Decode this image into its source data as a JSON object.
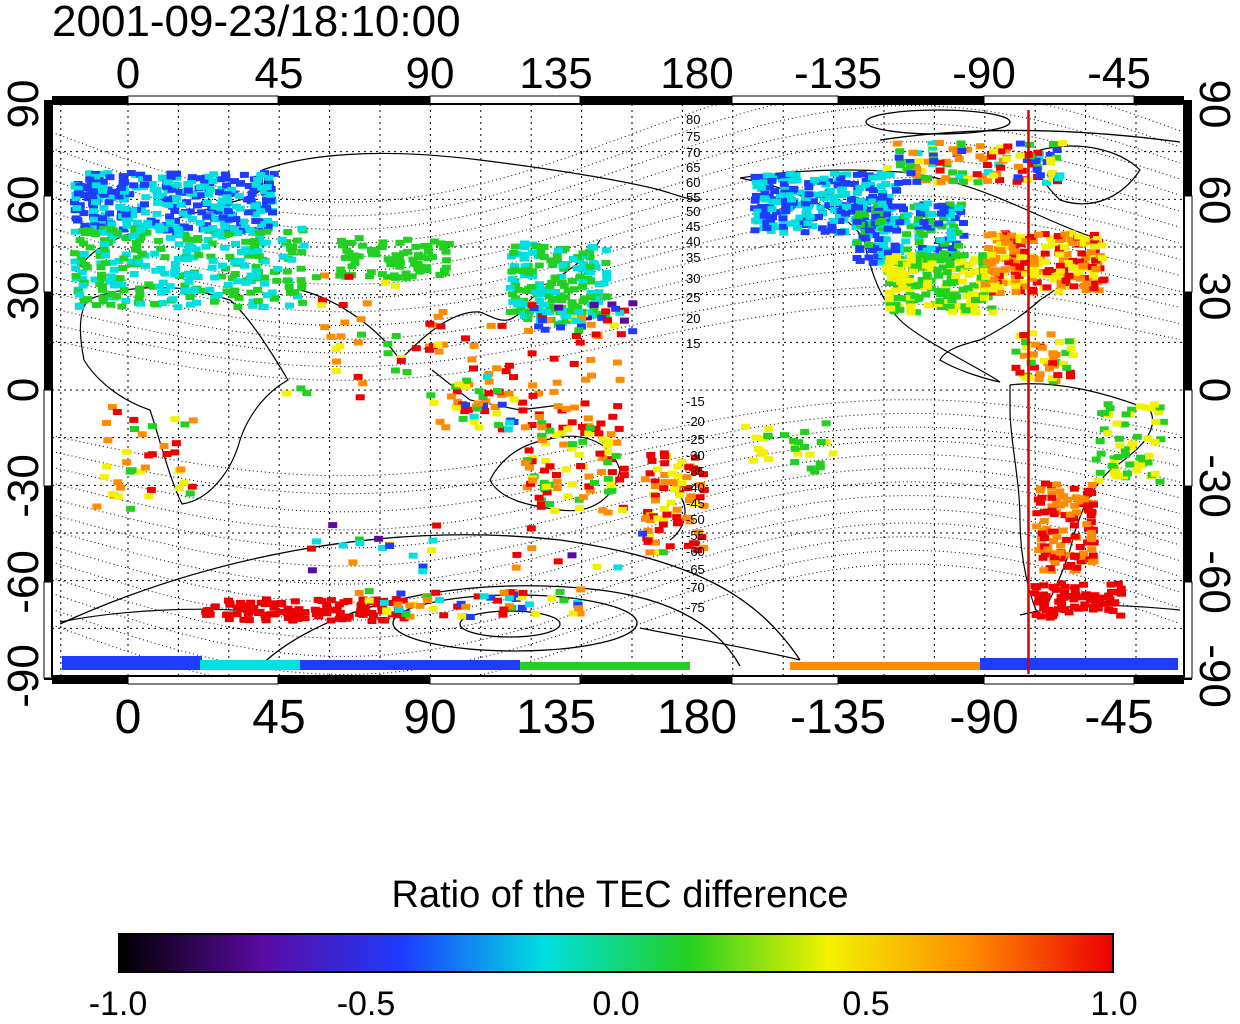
{
  "timestamp": "2001-09-23/18:10:00",
  "top_axis_labels": [
    "0",
    "45",
    "90",
    "135",
    "180",
    "-135",
    "-90",
    "-45"
  ],
  "bottom_axis_labels": [
    "0",
    "45",
    "90",
    "135",
    "180",
    "-135",
    "-90",
    "-45"
  ],
  "left_axis_labels": [
    "90",
    "60",
    "30",
    "0",
    "-30",
    "-60",
    "-90"
  ],
  "right_axis_labels": [
    "90",
    "60",
    "30",
    "0",
    "-30",
    "-60",
    "-90"
  ],
  "contour_labels_north": [
    "80",
    "75",
    "70",
    "65",
    "60",
    "55",
    "50",
    "45",
    "40",
    "35",
    "30",
    "25",
    "20",
    "15"
  ],
  "contour_labels_south": [
    "-15",
    "-20",
    "-25",
    "-30",
    "-35",
    "-40",
    "-45",
    "-50",
    "-55",
    "-60",
    "-65",
    "-70",
    "-75"
  ],
  "colorbar": {
    "title": "Ratio of the TEC difference",
    "tick_labels": [
      "-1.0",
      "-0.5",
      "0.0",
      "0.5",
      "1.0"
    ],
    "range": [
      -1.0,
      1.0
    ]
  },
  "marker_line": {
    "longitude": -92,
    "color": "#dd0000"
  },
  "colors": {
    "black": "#000000",
    "purple": "#5a0aa0",
    "blue": "#1e3cff",
    "cyan": "#00e0e0",
    "green": "#22d022",
    "yellow": "#f2f200",
    "orange": "#ff8c00",
    "red": "#ee0000"
  }
}
